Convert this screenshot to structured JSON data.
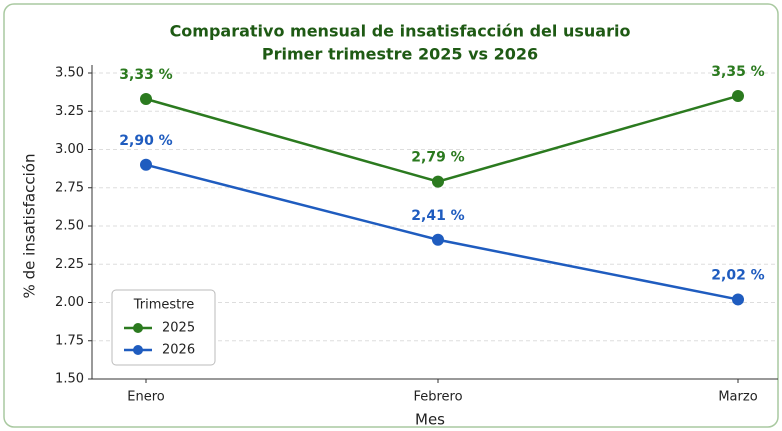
{
  "chart_data": {
    "type": "line",
    "title": "Comparativo mensual de insatisfacción del usuario",
    "subtitle": "Primer trimestre 2025 vs 2026",
    "xlabel": "Mes",
    "ylabel": "% de insatisfacción",
    "categories": [
      "Enero",
      "Febrero",
      "Marzo"
    ],
    "series": [
      {
        "name": "2025",
        "color": "#2b7a1f",
        "values": [
          3.33,
          2.79,
          3.35
        ],
        "value_labels": [
          "3,33 %",
          "2,79 %",
          "3,35 %"
        ]
      },
      {
        "name": "2026",
        "color": "#1f5cbf",
        "values": [
          2.9,
          2.41,
          2.02
        ],
        "value_labels": [
          "2,90 %",
          "2,41 %",
          "2,02 %"
        ]
      }
    ],
    "ylim": [
      1.5,
      3.5
    ],
    "yticks": [
      {
        "value": 1.5,
        "label": "1.50"
      },
      {
        "value": 1.75,
        "label": "1.75"
      },
      {
        "value": 2.0,
        "label": "2.00"
      },
      {
        "value": 2.25,
        "label": "2.25"
      },
      {
        "value": 2.5,
        "label": "2.50"
      },
      {
        "value": 2.75,
        "label": "2.75"
      },
      {
        "value": 3.0,
        "label": "3.00"
      },
      {
        "value": 3.25,
        "label": "3.25"
      },
      {
        "value": 3.5,
        "label": "3.50"
      }
    ],
    "grid": true,
    "legend_title": "Trimestre",
    "legend_position": "lower left"
  }
}
